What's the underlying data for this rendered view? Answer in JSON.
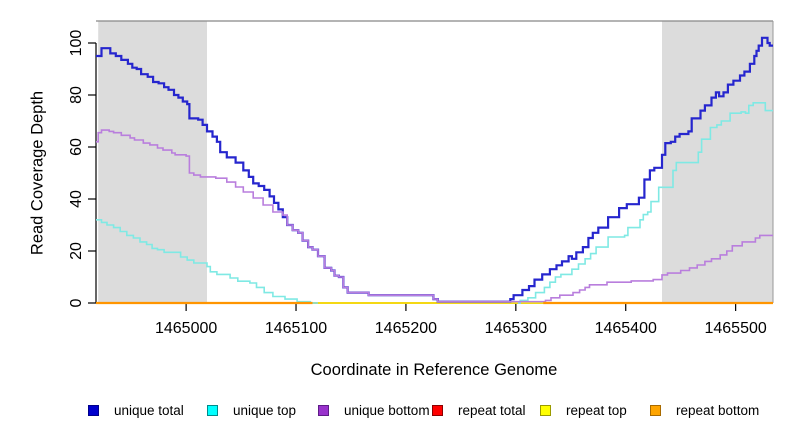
{
  "chart_data": {
    "type": "line",
    "variant": "step-coverage-plot",
    "title": "",
    "xlabel": "Coordinate in Reference Genome",
    "ylabel": "Read Coverage Depth",
    "xlim": [
      1464918,
      1465534
    ],
    "ylim": [
      0,
      100
    ],
    "x_ticks": [
      1465000,
      1465100,
      1465200,
      1465300,
      1465400,
      1465500
    ],
    "y_ticks": [
      0,
      20,
      40,
      60,
      80,
      100
    ],
    "grid": false,
    "shade_color": "#DCDCDC",
    "shaded_regions": [
      {
        "x0": 1464920,
        "x1": 1465019,
        "meaning": "repeat region"
      },
      {
        "x0": 1465433,
        "x1": 1465534,
        "meaning": "repeat region"
      }
    ],
    "baseline_overlap": {
      "x0": 1465115,
      "x1": 1465325,
      "y": 0,
      "color": "#9BCD9B",
      "meaning": "overlapping zero-depth lines in non-repeat gap"
    },
    "series": [
      {
        "name": "repeat total",
        "color": "#FF0000",
        "width": 1.6,
        "segments": [
          [
            [
              1464918,
              0
            ],
            [
              1465534,
              0
            ]
          ]
        ]
      },
      {
        "name": "repeat top",
        "color": "#FFFF00",
        "width": 1.6,
        "segments": [
          [
            [
              1464918,
              0
            ],
            [
              1465534,
              0
            ]
          ]
        ]
      },
      {
        "name": "unique total",
        "color": "#2626CE",
        "width": 2.2,
        "segments": [
          [
            [
              1464918,
              95
            ],
            [
              1464923,
              98
            ],
            [
              1464931,
              96
            ],
            [
              1464936,
              95
            ],
            [
              1464941,
              93.5
            ],
            [
              1464947,
              92
            ],
            [
              1464951,
              90.5
            ],
            [
              1464955,
              90
            ],
            [
              1464959,
              88
            ],
            [
              1464965,
              87
            ],
            [
              1464970,
              85
            ],
            [
              1464975,
              84.5
            ],
            [
              1464980,
              83
            ],
            [
              1464984,
              82
            ],
            [
              1464989,
              80
            ],
            [
              1464993,
              79
            ],
            [
              1464997,
              77.5
            ],
            [
              1465001,
              76.5
            ],
            [
              1465003,
              71
            ],
            [
              1465011,
              70.5
            ],
            [
              1465015,
              68.5
            ],
            [
              1465019,
              66
            ],
            [
              1465024,
              64
            ],
            [
              1465028,
              62
            ],
            [
              1465031,
              58
            ],
            [
              1465037,
              56
            ],
            [
              1465045,
              54
            ],
            [
              1465052,
              51
            ],
            [
              1465057,
              48.5
            ],
            [
              1465061,
              46
            ],
            [
              1465066,
              45
            ],
            [
              1465071,
              43.5
            ],
            [
              1465076,
              41
            ],
            [
              1465080,
              38.5
            ],
            [
              1465084,
              36
            ],
            [
              1465088,
              33
            ],
            [
              1465092,
              30
            ],
            [
              1465097,
              28
            ],
            [
              1465102,
              27
            ],
            [
              1465106,
              24
            ],
            [
              1465111,
              21.5
            ],
            [
              1465115,
              20.5
            ],
            [
              1465120,
              18
            ],
            [
              1465126,
              13.5
            ],
            [
              1465132,
              12.5
            ],
            [
              1465135,
              10.5
            ],
            [
              1465139,
              10
            ],
            [
              1465143,
              6
            ],
            [
              1465147,
              4
            ],
            [
              1465166,
              3
            ],
            [
              1465221,
              3
            ],
            [
              1465225,
              1.5
            ],
            [
              1465229,
              0.5
            ],
            [
              1465292,
              0.5
            ],
            [
              1465295,
              1.5
            ],
            [
              1465298,
              3
            ],
            [
              1465306,
              5
            ],
            [
              1465312,
              6.5
            ],
            [
              1465317,
              9
            ],
            [
              1465324,
              11
            ],
            [
              1465331,
              13
            ],
            [
              1465337,
              14.5
            ],
            [
              1465342,
              16
            ],
            [
              1465348,
              18
            ],
            [
              1465351,
              17
            ],
            [
              1465355,
              19.5
            ],
            [
              1465361,
              21.5
            ],
            [
              1465366,
              25
            ],
            [
              1465370,
              27
            ],
            [
              1465375,
              29
            ],
            [
              1465384,
              33
            ],
            [
              1465394,
              36.5
            ],
            [
              1465401,
              38
            ],
            [
              1465412,
              40.5
            ],
            [
              1465417,
              47.5
            ],
            [
              1465422,
              51
            ],
            [
              1465426,
              52
            ],
            [
              1465433,
              57
            ],
            [
              1465436,
              61.5
            ],
            [
              1465441,
              62
            ],
            [
              1465445,
              64
            ],
            [
              1465449,
              65
            ],
            [
              1465457,
              66
            ],
            [
              1465460,
              71
            ],
            [
              1465468,
              74
            ],
            [
              1465472,
              76
            ],
            [
              1465478,
              79
            ],
            [
              1465482,
              81
            ],
            [
              1465485,
              79.5
            ],
            [
              1465489,
              81
            ],
            [
              1465493,
              84
            ],
            [
              1465498,
              85.5
            ],
            [
              1465504,
              87.5
            ],
            [
              1465508,
              89
            ],
            [
              1465513,
              92
            ],
            [
              1465517,
              95
            ],
            [
              1465519,
              97
            ],
            [
              1465521,
              99
            ],
            [
              1465524,
              102
            ],
            [
              1465529,
              100
            ],
            [
              1465531,
              99
            ],
            [
              1465534,
              99
            ]
          ]
        ]
      },
      {
        "name": "unique top",
        "color": "#7FE9E4",
        "width": 1.6,
        "segments": [
          [
            [
              1464918,
              32
            ],
            [
              1464923,
              31
            ],
            [
              1464928,
              30
            ],
            [
              1464934,
              29
            ],
            [
              1464940,
              27.5
            ],
            [
              1464946,
              26
            ],
            [
              1464952,
              25
            ],
            [
              1464958,
              23.5
            ],
            [
              1464964,
              22.5
            ],
            [
              1464969,
              21
            ],
            [
              1464974,
              20.5
            ],
            [
              1464980,
              19.5
            ],
            [
              1464995,
              17.7
            ],
            [
              1465001,
              16.5
            ],
            [
              1465007,
              15.4
            ],
            [
              1465019,
              14
            ],
            [
              1465022,
              12
            ],
            [
              1465028,
              11
            ],
            [
              1465040,
              9.6
            ],
            [
              1465047,
              8.4
            ],
            [
              1465058,
              7.7
            ],
            [
              1465064,
              6
            ],
            [
              1465071,
              4
            ],
            [
              1465079,
              2.5
            ],
            [
              1465090,
              1.5
            ],
            [
              1465101,
              0.5
            ],
            [
              1465113,
              0
            ],
            [
              1465120,
              0
            ]
          ],
          [
            [
              1465302,
              0
            ],
            [
              1465304,
              1
            ],
            [
              1465311,
              2
            ],
            [
              1465318,
              4
            ],
            [
              1465326,
              6
            ],
            [
              1465331,
              8
            ],
            [
              1465336,
              10
            ],
            [
              1465341,
              11
            ],
            [
              1465351,
              13
            ],
            [
              1465357,
              15
            ],
            [
              1465363,
              17
            ],
            [
              1465368,
              19
            ],
            [
              1465373,
              21.5
            ],
            [
              1465384,
              25.4
            ],
            [
              1465399,
              26
            ],
            [
              1465402,
              29
            ],
            [
              1465413,
              32
            ],
            [
              1465416,
              34
            ],
            [
              1465420,
              35
            ],
            [
              1465423,
              39
            ],
            [
              1465430,
              44.5
            ],
            [
              1465443,
              51
            ],
            [
              1465446,
              54
            ],
            [
              1465466,
              58
            ],
            [
              1465469,
              63
            ],
            [
              1465477,
              67.5
            ],
            [
              1465483,
              68.5
            ],
            [
              1465487,
              70
            ],
            [
              1465495,
              73
            ],
            [
              1465505,
              73.5
            ],
            [
              1465509,
              73
            ],
            [
              1465512,
              76
            ],
            [
              1465516,
              77
            ],
            [
              1465527,
              74
            ],
            [
              1465534,
              74
            ]
          ]
        ]
      },
      {
        "name": "unique bottom",
        "color": "#B97EDD",
        "width": 1.6,
        "segments": [
          [
            [
              1464918,
              62
            ],
            [
              1464920,
              65.5
            ],
            [
              1464923,
              66.5
            ],
            [
              1464930,
              66
            ],
            [
              1464934,
              65.5
            ],
            [
              1464941,
              64.5
            ],
            [
              1464949,
              63.5
            ],
            [
              1464953,
              62.7
            ],
            [
              1464961,
              61.5
            ],
            [
              1464967,
              60.8
            ],
            [
              1464974,
              59.6
            ],
            [
              1464979,
              58.8
            ],
            [
              1464987,
              57.7
            ],
            [
              1464990,
              57
            ],
            [
              1465000,
              56.5
            ],
            [
              1465003,
              50
            ],
            [
              1465007,
              49.2
            ],
            [
              1465013,
              48.5
            ],
            [
              1465027,
              48
            ],
            [
              1465037,
              46.5
            ],
            [
              1465045,
              44.6
            ],
            [
              1465052,
              42.7
            ],
            [
              1465061,
              40.4
            ],
            [
              1465070,
              37.7
            ],
            [
              1465079,
              35
            ],
            [
              1465088,
              33.8
            ],
            [
              1465092,
              30
            ],
            [
              1465097,
              28
            ],
            [
              1465102,
              27
            ],
            [
              1465106,
              24
            ],
            [
              1465111,
              21.5
            ],
            [
              1465115,
              20.5
            ],
            [
              1465120,
              18
            ],
            [
              1465126,
              13.5
            ],
            [
              1465132,
              12.5
            ],
            [
              1465135,
              10.5
            ],
            [
              1465139,
              10
            ],
            [
              1465143,
              6
            ],
            [
              1465147,
              4
            ],
            [
              1465166,
              3
            ],
            [
              1465221,
              3
            ],
            [
              1465225,
              1.5
            ],
            [
              1465229,
              0.5
            ],
            [
              1465324,
              0.5
            ],
            [
              1465327,
              1
            ],
            [
              1465332,
              2
            ],
            [
              1465340,
              3
            ],
            [
              1465352,
              4
            ],
            [
              1465358,
              5
            ],
            [
              1465363,
              6
            ],
            [
              1465367,
              7
            ],
            [
              1465383,
              8
            ],
            [
              1465405,
              8.5
            ],
            [
              1465425,
              9
            ],
            [
              1465433,
              10.8
            ],
            [
              1465438,
              11.5
            ],
            [
              1465450,
              12.5
            ],
            [
              1465458,
              13.5
            ],
            [
              1465465,
              14.6
            ],
            [
              1465472,
              16
            ],
            [
              1465478,
              17
            ],
            [
              1465486,
              18.5
            ],
            [
              1465492,
              20
            ],
            [
              1465497,
              22
            ],
            [
              1465506,
              23.5
            ],
            [
              1465518,
              25
            ],
            [
              1465522,
              26
            ],
            [
              1465534,
              26
            ]
          ]
        ]
      },
      {
        "name": "repeat bottom",
        "color": "#FF9500",
        "width": 2.2,
        "segments": [
          [
            [
              1464918,
              0
            ],
            [
              1465115,
              0
            ]
          ],
          [
            [
              1465325,
              0
            ],
            [
              1465534,
              0
            ]
          ]
        ]
      }
    ]
  },
  "legend": {
    "items": [
      {
        "label": "unique total",
        "fill": "#0000CD",
        "border": "#00008B"
      },
      {
        "label": "unique top",
        "fill": "#00FFFF",
        "border": "#008B8B"
      },
      {
        "label": "unique bottom",
        "fill": "#9932CC",
        "border": "#5E1C87"
      },
      {
        "label": "repeat total",
        "fill": "#FF0000",
        "border": "#8B0000"
      },
      {
        "label": "repeat top",
        "fill": "#FFFF00",
        "border": "#9A9A00"
      },
      {
        "label": "repeat bottom",
        "fill": "#FFA500",
        "border": "#A86A00"
      }
    ]
  }
}
